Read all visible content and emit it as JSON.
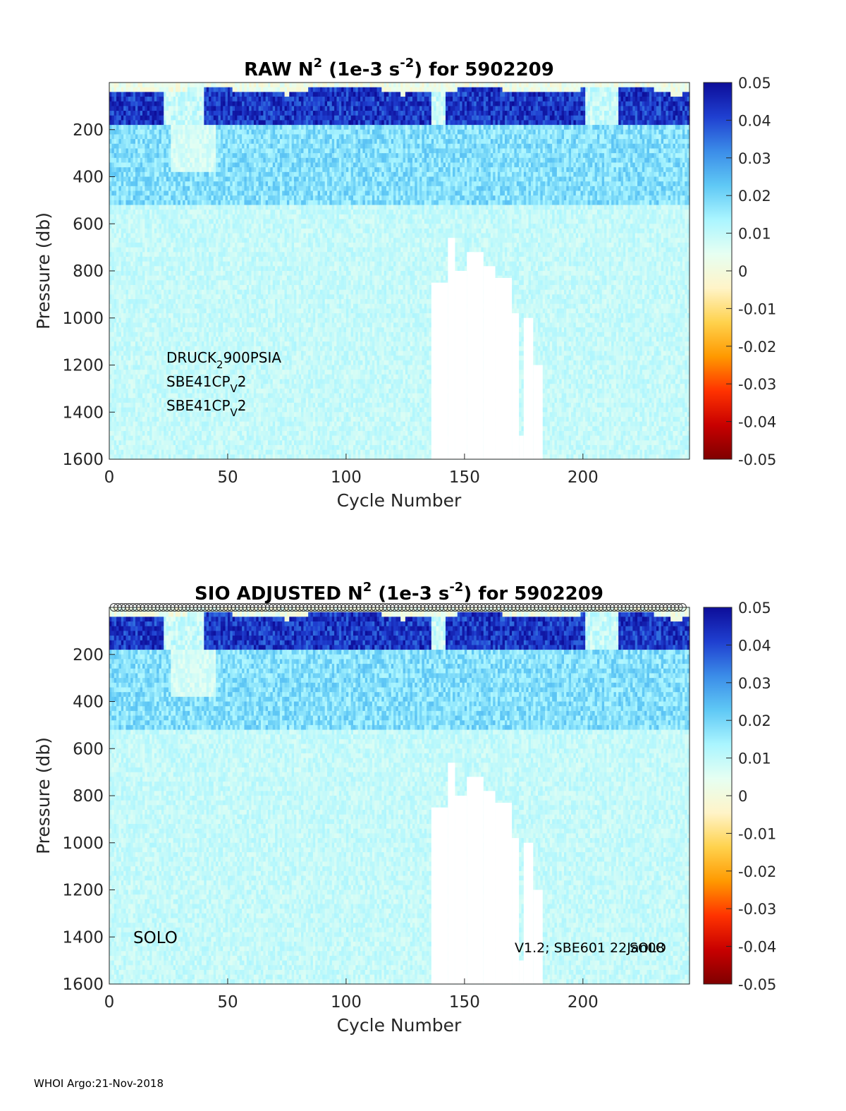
{
  "footer": "WHOI Argo:21-Nov-2018",
  "colors": {
    "cmap": [
      "#7f0000",
      "#c80000",
      "#ff3300",
      "#ff9900",
      "#ffd24d",
      "#fff4c8",
      "#e6fff2",
      "#aaf5ff",
      "#5fc8f5",
      "#3b8ce8",
      "#1f3fd0",
      "#0d0d99"
    ],
    "missing": "#ffffff"
  },
  "chart_data": [
    {
      "type": "heatmap",
      "title": {
        "pre": "RAW N",
        "sup1": "2",
        "mid": " (1e-3 s",
        "sup2": "-2",
        "post": ") for 5902209"
      },
      "xlabel": "Cycle Number",
      "ylabel": "Pressure (db)",
      "xlim": [
        0,
        245
      ],
      "ylim": [
        0,
        1600
      ],
      "y_reversed": true,
      "xticks": [
        "0",
        "50",
        "100",
        "150",
        "200"
      ],
      "yticks": [
        "200",
        "400",
        "600",
        "800",
        "1000",
        "1200",
        "1400",
        "1600"
      ],
      "colorbar": {
        "range": [
          -0.05,
          0.05
        ],
        "ticks": [
          "0.05",
          "0.04",
          "0.03",
          "0.02",
          "0.01",
          "0",
          "-0.01",
          "-0.02",
          "-0.03",
          "-0.04",
          "-0.05"
        ]
      },
      "annotations": [
        {
          "base": "DRUCK",
          "sub": "2",
          "rest": "900PSIA"
        },
        {
          "base": "SBE41CP",
          "sub": "V",
          "rest": "2"
        },
        {
          "base": "SBE41CP",
          "sub": "V",
          "rest": "2"
        }
      ],
      "missing_regions": [
        {
          "cycles": [
            136,
            143
          ],
          "from": 850
        },
        {
          "cycles": [
            143,
            146
          ],
          "from": 660
        },
        {
          "cycles": [
            146,
            151
          ],
          "from": 800
        },
        {
          "cycles": [
            151,
            158
          ],
          "from": 720
        },
        {
          "cycles": [
            158,
            163
          ],
          "from": 780
        },
        {
          "cycles": [
            163,
            170
          ],
          "from": 830
        },
        {
          "cycles": [
            170,
            173
          ],
          "from": 980
        },
        {
          "cycles": [
            173,
            175
          ],
          "from": 1500
        },
        {
          "cycles": [
            175,
            179
          ],
          "from": 1000
        },
        {
          "cycles": [
            179,
            183
          ],
          "from": 1200
        }
      ]
    },
    {
      "type": "heatmap",
      "title": {
        "pre": "SIO  ADJUSTED N",
        "sup1": "2",
        "mid": " (1e-3 s",
        "sup2": "-2",
        "post": ") for 5902209"
      },
      "xlabel": "Cycle Number",
      "ylabel": "Pressure (db)",
      "xlim": [
        0,
        245
      ],
      "ylim": [
        0,
        1600
      ],
      "y_reversed": true,
      "xticks": [
        "0",
        "50",
        "100",
        "150",
        "200"
      ],
      "yticks": [
        "200",
        "400",
        "600",
        "800",
        "1000",
        "1200",
        "1400",
        "1600"
      ],
      "colorbar": {
        "range": [
          -0.05,
          0.05
        ],
        "ticks": [
          "0.05",
          "0.04",
          "0.03",
          "0.02",
          "0.01",
          "0",
          "-0.01",
          "-0.02",
          "-0.03",
          "-0.04",
          "-0.05"
        ]
      },
      "annotations": [
        {
          "text": "SOLO"
        },
        {
          "text": "V1.2; SBE601 22Jan08"
        },
        {
          "text": "SOLO"
        }
      ],
      "qc_marker_row": true,
      "missing_regions": [
        {
          "cycles": [
            136,
            143
          ],
          "from": 850
        },
        {
          "cycles": [
            143,
            146
          ],
          "from": 660
        },
        {
          "cycles": [
            146,
            151
          ],
          "from": 800
        },
        {
          "cycles": [
            151,
            158
          ],
          "from": 720
        },
        {
          "cycles": [
            158,
            163
          ],
          "from": 780
        },
        {
          "cycles": [
            163,
            170
          ],
          "from": 830
        },
        {
          "cycles": [
            170,
            173
          ],
          "from": 980
        },
        {
          "cycles": [
            173,
            175
          ],
          "from": 1500
        },
        {
          "cycles": [
            175,
            179
          ],
          "from": 1000
        },
        {
          "cycles": [
            179,
            183
          ],
          "from": 1200
        }
      ]
    }
  ]
}
